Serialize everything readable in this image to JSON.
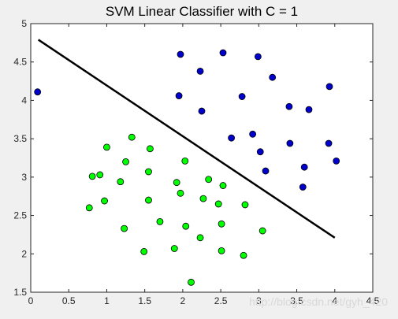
{
  "chart_data": {
    "type": "scatter",
    "title": "SVM Linear Classifier with C = 1",
    "xlabel": "",
    "ylabel": "",
    "xlim": [
      0,
      4.5
    ],
    "ylim": [
      1.5,
      5
    ],
    "x_ticks": [
      0,
      0.5,
      1,
      1.5,
      2,
      2.5,
      3,
      3.5,
      4,
      4.5
    ],
    "x_tick_labels": [
      "0",
      "0.5",
      "1",
      "1.5",
      "2",
      "2.5",
      "3",
      "3.5",
      "4",
      "4.5"
    ],
    "y_ticks": [
      1.5,
      2,
      2.5,
      3,
      3.5,
      4,
      4.5,
      5
    ],
    "y_tick_labels": [
      "1.5",
      "2",
      "2.5",
      "3",
      "3.5",
      "4",
      "4.5",
      "5"
    ],
    "grid": false,
    "legend": false,
    "series": [
      {
        "color": "#0000cc",
        "marker": "circle",
        "points": [
          [
            0.09,
            4.11
          ],
          [
            1.97,
            4.6
          ],
          [
            2.53,
            4.62
          ],
          [
            2.99,
            4.57
          ],
          [
            2.23,
            4.38
          ],
          [
            3.18,
            4.3
          ],
          [
            3.93,
            4.18
          ],
          [
            1.95,
            4.06
          ],
          [
            2.78,
            4.05
          ],
          [
            3.4,
            3.92
          ],
          [
            3.66,
            3.88
          ],
          [
            2.25,
            3.86
          ],
          [
            2.92,
            3.56
          ],
          [
            2.64,
            3.51
          ],
          [
            3.41,
            3.44
          ],
          [
            3.92,
            3.44
          ],
          [
            3.02,
            3.33
          ],
          [
            4.02,
            3.21
          ],
          [
            3.6,
            3.13
          ],
          [
            3.09,
            3.08
          ],
          [
            3.58,
            2.87
          ]
        ]
      },
      {
        "color": "#00ff00",
        "marker": "circle",
        "points": [
          [
            1.33,
            3.52
          ],
          [
            1.0,
            3.39
          ],
          [
            1.57,
            3.37
          ],
          [
            1.25,
            3.2
          ],
          [
            2.03,
            3.21
          ],
          [
            1.55,
            3.07
          ],
          [
            0.81,
            3.01
          ],
          [
            0.91,
            3.03
          ],
          [
            1.18,
            2.94
          ],
          [
            2.34,
            2.97
          ],
          [
            1.92,
            2.93
          ],
          [
            2.53,
            2.89
          ],
          [
            1.97,
            2.79
          ],
          [
            0.97,
            2.69
          ],
          [
            1.55,
            2.7
          ],
          [
            2.27,
            2.72
          ],
          [
            2.47,
            2.65
          ],
          [
            2.82,
            2.64
          ],
          [
            0.77,
            2.6
          ],
          [
            1.7,
            2.42
          ],
          [
            2.51,
            2.39
          ],
          [
            2.04,
            2.36
          ],
          [
            1.23,
            2.33
          ],
          [
            3.05,
            2.3
          ],
          [
            2.23,
            2.21
          ],
          [
            1.89,
            2.07
          ],
          [
            1.49,
            2.03
          ],
          [
            2.51,
            2.04
          ],
          [
            2.8,
            1.98
          ],
          [
            2.11,
            1.63
          ]
        ]
      }
    ],
    "decision_boundary": {
      "color": "#000000",
      "points": [
        [
          0.1,
          4.79
        ],
        [
          4.0,
          2.21
        ]
      ]
    }
  },
  "watermark": "http://blog.csdn.net/gyh_420"
}
